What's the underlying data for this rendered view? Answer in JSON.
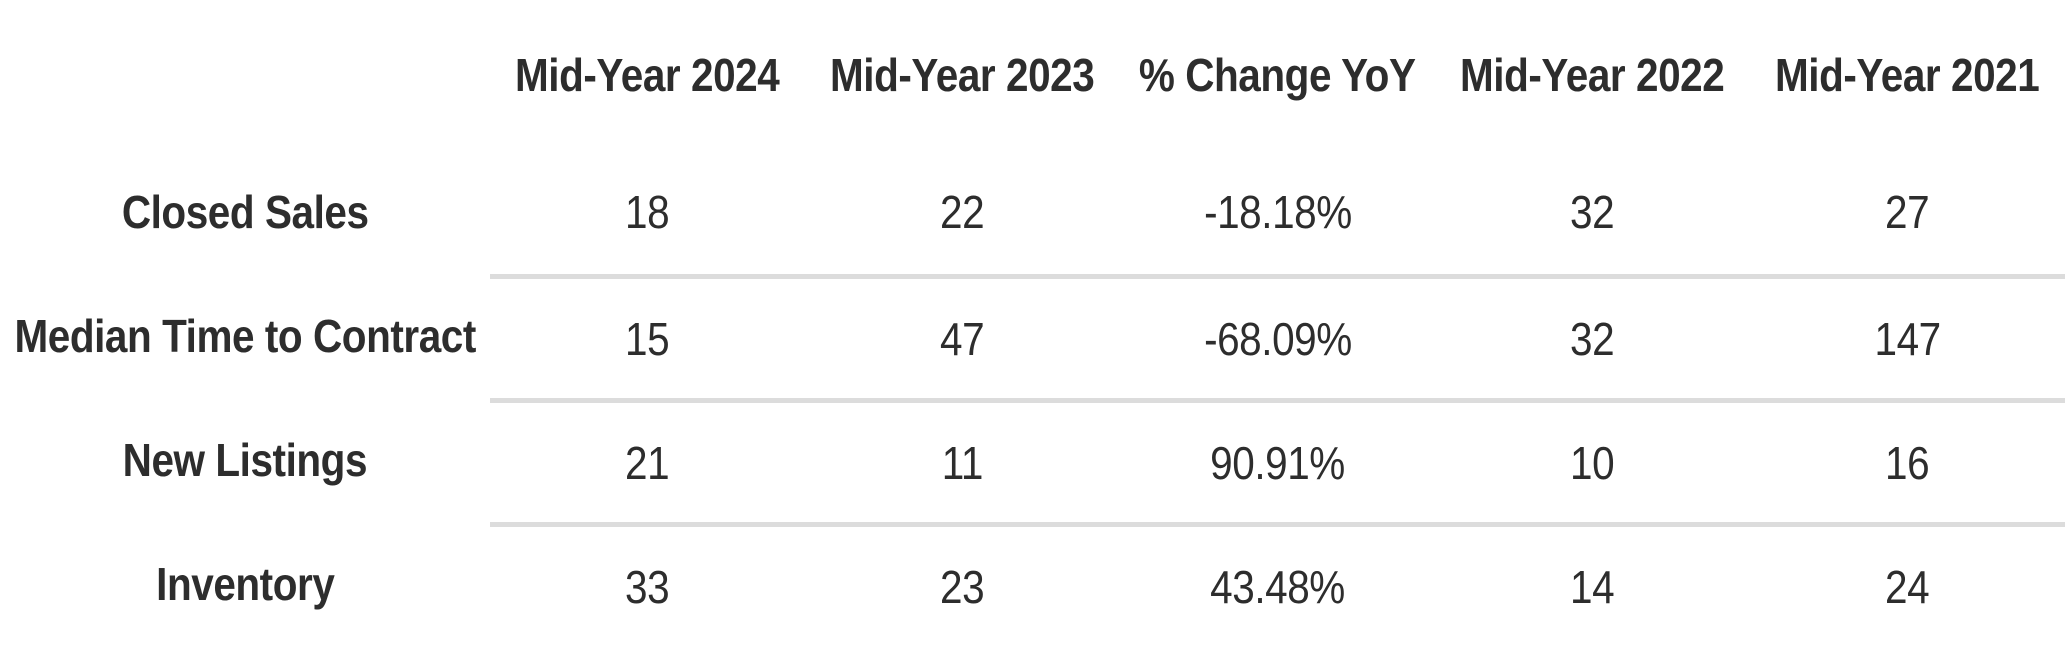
{
  "table": {
    "corner_label": "",
    "columns": [
      "Mid-Year 2024",
      "Mid-Year 2023",
      "% Change YoY",
      "Mid-Year 2022",
      "Mid-Year 2021"
    ],
    "rows": [
      {
        "label": "Closed Sales",
        "values": [
          "18",
          "22",
          "-18.18%",
          "32",
          "27"
        ]
      },
      {
        "label": "Median Time to Contract",
        "values": [
          "15",
          "47",
          "-68.09%",
          "32",
          "147"
        ]
      },
      {
        "label": "New Listings",
        "values": [
          "21",
          "11",
          "90.91%",
          "10",
          "16"
        ]
      },
      {
        "label": "Inventory",
        "values": [
          "33",
          "23",
          "43.48%",
          "14",
          "24"
        ]
      }
    ],
    "colors": {
      "text": "#2d2d2d",
      "separator": "#dcdcdc",
      "background": "#ffffff"
    }
  },
  "chart_data": {
    "type": "table",
    "title": "",
    "categories": [
      "Mid-Year 2024",
      "Mid-Year 2023",
      "% Change YoY",
      "Mid-Year 2022",
      "Mid-Year 2021"
    ],
    "series": [
      {
        "name": "Closed Sales",
        "values": [
          18,
          22,
          -18.18,
          32,
          27
        ]
      },
      {
        "name": "Median Time to Contract",
        "values": [
          15,
          47,
          -68.09,
          32,
          147
        ]
      },
      {
        "name": "New Listings",
        "values": [
          21,
          11,
          90.91,
          10,
          16
        ]
      },
      {
        "name": "Inventory",
        "values": [
          33,
          23,
          43.48,
          14,
          24
        ]
      }
    ],
    "notes": "Percent change column values are displayed with a trailing % sign; grid lines separate data rows across value columns only"
  }
}
